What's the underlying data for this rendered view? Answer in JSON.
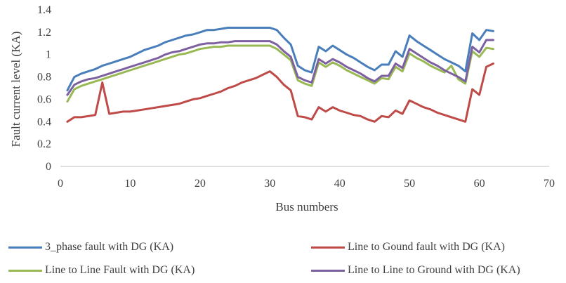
{
  "chart_data": {
    "type": "line",
    "title": "",
    "xlabel": "Bus numbers",
    "ylabel": "Fault current level (KA)",
    "xlim": [
      0,
      70
    ],
    "ylim": [
      0,
      1.4
    ],
    "xticks": [
      0,
      10,
      20,
      30,
      40,
      50,
      60,
      70
    ],
    "yticks": [
      0,
      0.2,
      0.4,
      0.6,
      0.8,
      1,
      1.2,
      1.4
    ],
    "grid": false,
    "legend_position": "bottom",
    "series": [
      {
        "name": "3_phase fault  with DG (KA)",
        "color": "#4a7ebb",
        "x": [
          1,
          2,
          3,
          4,
          5,
          6,
          7,
          8,
          9,
          10,
          11,
          12,
          13,
          14,
          15,
          16,
          17,
          18,
          19,
          20,
          21,
          22,
          23,
          24,
          25,
          26,
          27,
          28,
          29,
          30,
          31,
          32,
          33,
          34,
          35,
          36,
          37,
          38,
          39,
          40,
          41,
          42,
          43,
          44,
          45,
          46,
          47,
          48,
          49,
          50,
          51,
          52,
          53,
          54,
          55,
          56,
          57,
          58,
          59,
          60,
          61,
          62
        ],
        "y": [
          0.68,
          0.8,
          0.83,
          0.85,
          0.87,
          0.9,
          0.92,
          0.94,
          0.96,
          0.98,
          1.01,
          1.04,
          1.06,
          1.08,
          1.11,
          1.13,
          1.15,
          1.17,
          1.18,
          1.2,
          1.22,
          1.22,
          1.23,
          1.24,
          1.24,
          1.24,
          1.24,
          1.24,
          1.24,
          1.24,
          1.22,
          1.15,
          1.09,
          0.9,
          0.86,
          0.84,
          1.07,
          1.03,
          1.08,
          1.04,
          1.0,
          0.97,
          0.93,
          0.89,
          0.86,
          0.91,
          0.91,
          1.03,
          0.98,
          1.17,
          1.12,
          1.08,
          1.04,
          1.0,
          0.96,
          0.93,
          0.9,
          0.85,
          1.19,
          1.13,
          1.22,
          1.21
        ]
      },
      {
        "name": "Line to Gound fault with DG (KA)",
        "color": "#be4b48",
        "x": [
          1,
          2,
          3,
          4,
          5,
          6,
          7,
          8,
          9,
          10,
          11,
          12,
          13,
          14,
          15,
          16,
          17,
          18,
          19,
          20,
          21,
          22,
          23,
          24,
          25,
          26,
          27,
          28,
          29,
          30,
          31,
          32,
          33,
          34,
          35,
          36,
          37,
          38,
          39,
          40,
          41,
          42,
          43,
          44,
          45,
          46,
          47,
          48,
          49,
          50,
          51,
          52,
          53,
          54,
          55,
          56,
          57,
          58,
          59,
          60,
          61,
          62
        ],
        "y": [
          0.4,
          0.44,
          0.44,
          0.45,
          0.46,
          0.75,
          0.47,
          0.48,
          0.49,
          0.49,
          0.5,
          0.51,
          0.52,
          0.53,
          0.54,
          0.55,
          0.56,
          0.58,
          0.6,
          0.61,
          0.63,
          0.65,
          0.67,
          0.7,
          0.72,
          0.75,
          0.77,
          0.79,
          0.82,
          0.85,
          0.8,
          0.73,
          0.68,
          0.45,
          0.44,
          0.42,
          0.53,
          0.49,
          0.53,
          0.5,
          0.48,
          0.46,
          0.45,
          0.42,
          0.4,
          0.45,
          0.44,
          0.5,
          0.47,
          0.59,
          0.56,
          0.53,
          0.51,
          0.48,
          0.46,
          0.44,
          0.42,
          0.4,
          0.69,
          0.64,
          0.89,
          0.92
        ]
      },
      {
        "name": "Line to Line Fault with DG (KA)",
        "color": "#98b954",
        "x": [
          1,
          2,
          3,
          4,
          5,
          6,
          7,
          8,
          9,
          10,
          11,
          12,
          13,
          14,
          15,
          16,
          17,
          18,
          19,
          20,
          21,
          22,
          23,
          24,
          25,
          26,
          27,
          28,
          29,
          30,
          31,
          32,
          33,
          34,
          35,
          36,
          37,
          38,
          39,
          40,
          41,
          42,
          43,
          44,
          45,
          46,
          47,
          48,
          49,
          50,
          51,
          52,
          53,
          54,
          55,
          56,
          57,
          58,
          59,
          60,
          61,
          62
        ],
        "y": [
          0.58,
          0.69,
          0.72,
          0.74,
          0.76,
          0.78,
          0.8,
          0.82,
          0.84,
          0.86,
          0.88,
          0.9,
          0.92,
          0.94,
          0.96,
          0.98,
          1.0,
          1.01,
          1.03,
          1.05,
          1.06,
          1.07,
          1.07,
          1.08,
          1.08,
          1.08,
          1.08,
          1.08,
          1.08,
          1.08,
          1.05,
          1.0,
          0.95,
          0.77,
          0.74,
          0.72,
          0.93,
          0.89,
          0.93,
          0.9,
          0.86,
          0.83,
          0.8,
          0.77,
          0.74,
          0.79,
          0.78,
          0.89,
          0.85,
          1.01,
          0.97,
          0.94,
          0.9,
          0.87,
          0.84,
          0.9,
          0.78,
          0.74,
          1.03,
          0.98,
          1.06,
          1.05
        ]
      },
      {
        "name": "Line to Line to Ground with DG (KA)",
        "color": "#7d60a0",
        "x": [
          1,
          2,
          3,
          4,
          5,
          6,
          7,
          8,
          9,
          10,
          11,
          12,
          13,
          14,
          15,
          16,
          17,
          18,
          19,
          20,
          21,
          22,
          23,
          24,
          25,
          26,
          27,
          28,
          29,
          30,
          31,
          32,
          33,
          34,
          35,
          36,
          37,
          38,
          39,
          40,
          41,
          42,
          43,
          44,
          45,
          46,
          47,
          48,
          49,
          50,
          51,
          52,
          53,
          54,
          55,
          56,
          57,
          58,
          59,
          60,
          61,
          62
        ],
        "y": [
          0.64,
          0.73,
          0.76,
          0.78,
          0.79,
          0.81,
          0.83,
          0.85,
          0.87,
          0.89,
          0.91,
          0.93,
          0.95,
          0.97,
          1.0,
          1.02,
          1.03,
          1.05,
          1.07,
          1.09,
          1.1,
          1.1,
          1.11,
          1.11,
          1.12,
          1.12,
          1.12,
          1.12,
          1.12,
          1.12,
          1.09,
          1.03,
          0.98,
          0.8,
          0.77,
          0.75,
          0.96,
          0.92,
          0.96,
          0.93,
          0.89,
          0.86,
          0.83,
          0.79,
          0.76,
          0.81,
          0.81,
          0.92,
          0.88,
          1.05,
          1.01,
          0.97,
          0.93,
          0.9,
          0.86,
          0.83,
          0.8,
          0.76,
          1.07,
          1.02,
          1.13,
          1.13
        ]
      }
    ]
  }
}
